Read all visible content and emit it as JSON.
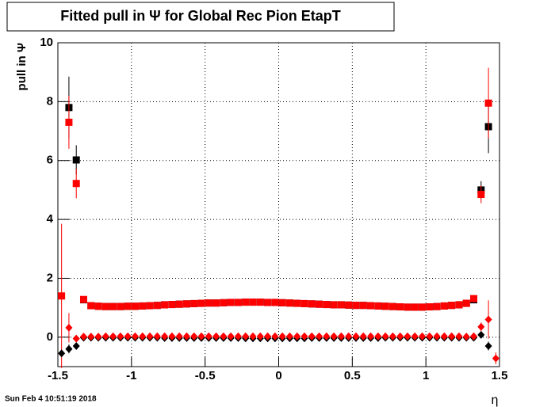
{
  "chart_data": {
    "type": "scatter",
    "title": "Fitted pull in  Ψ  for Global Rec Pion EtapT",
    "y_label": "pull in  Ψ",
    "x_label": "η",
    "timestamp": "Sun Feb  4 10:51:19 2018",
    "xlim": [
      -1.5,
      1.5
    ],
    "ylim": [
      -1,
      10
    ],
    "xticks": [
      -1.5,
      -1,
      -0.5,
      0,
      0.5,
      1,
      1.5
    ],
    "yticks": [
      0,
      2,
      4,
      6,
      8,
      10
    ],
    "grid": true,
    "x": [
      -1.475,
      -1.425,
      -1.375,
      -1.325,
      -1.275,
      -1.225,
      -1.175,
      -1.125,
      -1.075,
      -1.025,
      -0.975,
      -0.925,
      -0.875,
      -0.825,
      -0.775,
      -0.725,
      -0.675,
      -0.625,
      -0.575,
      -0.525,
      -0.475,
      -0.425,
      -0.375,
      -0.325,
      -0.275,
      -0.225,
      -0.175,
      -0.125,
      -0.075,
      -0.025,
      0.025,
      0.075,
      0.125,
      0.175,
      0.225,
      0.275,
      0.325,
      0.375,
      0.425,
      0.475,
      0.525,
      0.575,
      0.625,
      0.675,
      0.725,
      0.775,
      0.825,
      0.875,
      0.925,
      0.975,
      1.025,
      1.075,
      1.125,
      1.175,
      1.225,
      1.275,
      1.325,
      1.375,
      1.425,
      1.475
    ],
    "series": [
      {
        "color": "#000000",
        "marker": "square",
        "values": [
          null,
          7.8,
          6.02,
          1.27,
          1.07,
          1.05,
          1.04,
          1.04,
          1.04,
          1.05,
          1.05,
          1.06,
          1.07,
          1.08,
          1.1,
          1.11,
          1.12,
          1.13,
          1.14,
          1.15,
          1.16,
          1.16,
          1.17,
          1.18,
          1.18,
          1.19,
          1.19,
          1.19,
          1.18,
          1.18,
          1.17,
          1.16,
          1.15,
          1.14,
          1.13,
          1.12,
          1.11,
          1.1,
          1.1,
          1.09,
          1.08,
          1.08,
          1.07,
          1.06,
          1.05,
          1.04,
          1.03,
          1.02,
          1.02,
          1.02,
          1.03,
          1.04,
          1.06,
          1.08,
          1.1,
          1.15,
          1.27,
          5.0,
          7.15,
          null
        ],
        "errors": [
          null,
          1.05,
          0.5,
          0.04,
          0.02,
          0.02,
          0.02,
          0.02,
          0.02,
          0.02,
          0.02,
          0.02,
          0.02,
          0.02,
          0.02,
          0.02,
          0.02,
          0.02,
          0.02,
          0.02,
          0.02,
          0.02,
          0.02,
          0.02,
          0.02,
          0.02,
          0.02,
          0.02,
          0.02,
          0.02,
          0.02,
          0.02,
          0.02,
          0.02,
          0.02,
          0.02,
          0.02,
          0.02,
          0.02,
          0.02,
          0.02,
          0.02,
          0.02,
          0.02,
          0.02,
          0.02,
          0.02,
          0.02,
          0.02,
          0.02,
          0.02,
          0.02,
          0.02,
          0.02,
          0.02,
          0.02,
          0.04,
          0.3,
          0.9,
          null
        ]
      },
      {
        "color": "#ff0000",
        "marker": "square",
        "values": [
          1.4,
          7.3,
          5.22,
          1.28,
          1.07,
          1.05,
          1.04,
          1.04,
          1.04,
          1.05,
          1.05,
          1.06,
          1.07,
          1.08,
          1.1,
          1.11,
          1.12,
          1.13,
          1.14,
          1.15,
          1.16,
          1.16,
          1.17,
          1.18,
          1.18,
          1.19,
          1.19,
          1.19,
          1.18,
          1.18,
          1.17,
          1.16,
          1.15,
          1.14,
          1.13,
          1.12,
          1.11,
          1.1,
          1.1,
          1.09,
          1.08,
          1.08,
          1.07,
          1.06,
          1.05,
          1.04,
          1.03,
          1.02,
          1.02,
          1.02,
          1.03,
          1.04,
          1.06,
          1.08,
          1.1,
          1.15,
          1.31,
          4.85,
          7.95,
          null
        ],
        "errors": [
          2.45,
          0.9,
          0.5,
          0.04,
          0.02,
          0.02,
          0.02,
          0.02,
          0.02,
          0.02,
          0.02,
          0.02,
          0.02,
          0.02,
          0.02,
          0.02,
          0.02,
          0.02,
          0.02,
          0.02,
          0.02,
          0.02,
          0.02,
          0.02,
          0.02,
          0.02,
          0.02,
          0.02,
          0.02,
          0.02,
          0.02,
          0.02,
          0.02,
          0.02,
          0.02,
          0.02,
          0.02,
          0.02,
          0.02,
          0.02,
          0.02,
          0.02,
          0.02,
          0.02,
          0.02,
          0.02,
          0.02,
          0.02,
          0.02,
          0.02,
          0.02,
          0.02,
          0.02,
          0.02,
          0.02,
          0.02,
          0.04,
          0.3,
          1.2,
          null
        ]
      },
      {
        "color": "#000000",
        "marker": "diamond",
        "values": [
          -0.55,
          -0.4,
          -0.3,
          -0.02,
          -0.02,
          -0.02,
          -0.02,
          -0.02,
          -0.02,
          -0.02,
          -0.02,
          -0.02,
          -0.02,
          -0.02,
          -0.03,
          -0.03,
          -0.03,
          -0.03,
          -0.03,
          -0.03,
          -0.03,
          -0.03,
          -0.03,
          -0.03,
          -0.03,
          -0.04,
          -0.04,
          -0.04,
          -0.04,
          -0.04,
          -0.04,
          -0.04,
          -0.04,
          -0.04,
          -0.03,
          -0.03,
          -0.03,
          -0.03,
          -0.03,
          -0.03,
          -0.03,
          -0.03,
          -0.03,
          -0.03,
          -0.02,
          -0.02,
          -0.02,
          -0.02,
          -0.02,
          -0.02,
          -0.02,
          -0.02,
          -0.02,
          -0.02,
          -0.02,
          -0.02,
          -0.02,
          0.08,
          -0.3,
          null
        ],
        "errors": [
          0.1,
          0.15,
          0.08,
          0.01,
          0.01,
          0.01,
          0.01,
          0.01,
          0.01,
          0.01,
          0.01,
          0.01,
          0.01,
          0.01,
          0.01,
          0.01,
          0.01,
          0.01,
          0.01,
          0.01,
          0.01,
          0.01,
          0.01,
          0.01,
          0.01,
          0.01,
          0.01,
          0.01,
          0.01,
          0.01,
          0.01,
          0.01,
          0.01,
          0.01,
          0.01,
          0.01,
          0.01,
          0.01,
          0.01,
          0.01,
          0.01,
          0.01,
          0.01,
          0.01,
          0.01,
          0.01,
          0.01,
          0.01,
          0.01,
          0.01,
          0.01,
          0.01,
          0.01,
          0.01,
          0.01,
          0.01,
          0.01,
          0.08,
          0.15,
          null
        ]
      },
      {
        "color": "#ff0000",
        "marker": "diamond",
        "values": [
          null,
          0.32,
          -0.05,
          0.02,
          0.02,
          0.02,
          0.03,
          0.03,
          0.03,
          0.03,
          0.03,
          0.03,
          0.03,
          0.03,
          0.03,
          0.03,
          0.03,
          0.03,
          0.03,
          0.03,
          0.03,
          0.03,
          0.03,
          0.03,
          0.03,
          0.03,
          0.03,
          0.03,
          0.03,
          0.03,
          0.03,
          0.03,
          0.03,
          0.03,
          0.03,
          0.03,
          0.03,
          0.03,
          0.03,
          0.03,
          0.03,
          0.03,
          0.03,
          0.03,
          0.03,
          0.03,
          0.03,
          0.03,
          0.03,
          0.03,
          0.03,
          0.03,
          0.03,
          0.03,
          0.03,
          0.02,
          0.03,
          0.35,
          0.6,
          -0.72
        ],
        "errors": [
          null,
          0.5,
          0.1,
          0.01,
          0.01,
          0.01,
          0.01,
          0.01,
          0.01,
          0.01,
          0.01,
          0.01,
          0.01,
          0.01,
          0.01,
          0.01,
          0.01,
          0.01,
          0.01,
          0.01,
          0.01,
          0.01,
          0.01,
          0.01,
          0.01,
          0.01,
          0.01,
          0.01,
          0.01,
          0.01,
          0.01,
          0.01,
          0.01,
          0.01,
          0.01,
          0.01,
          0.01,
          0.01,
          0.01,
          0.01,
          0.01,
          0.01,
          0.01,
          0.01,
          0.01,
          0.01,
          0.01,
          0.01,
          0.01,
          0.01,
          0.01,
          0.01,
          0.01,
          0.01,
          0.01,
          0.01,
          0.01,
          0.15,
          0.65,
          0.2
        ]
      }
    ]
  }
}
